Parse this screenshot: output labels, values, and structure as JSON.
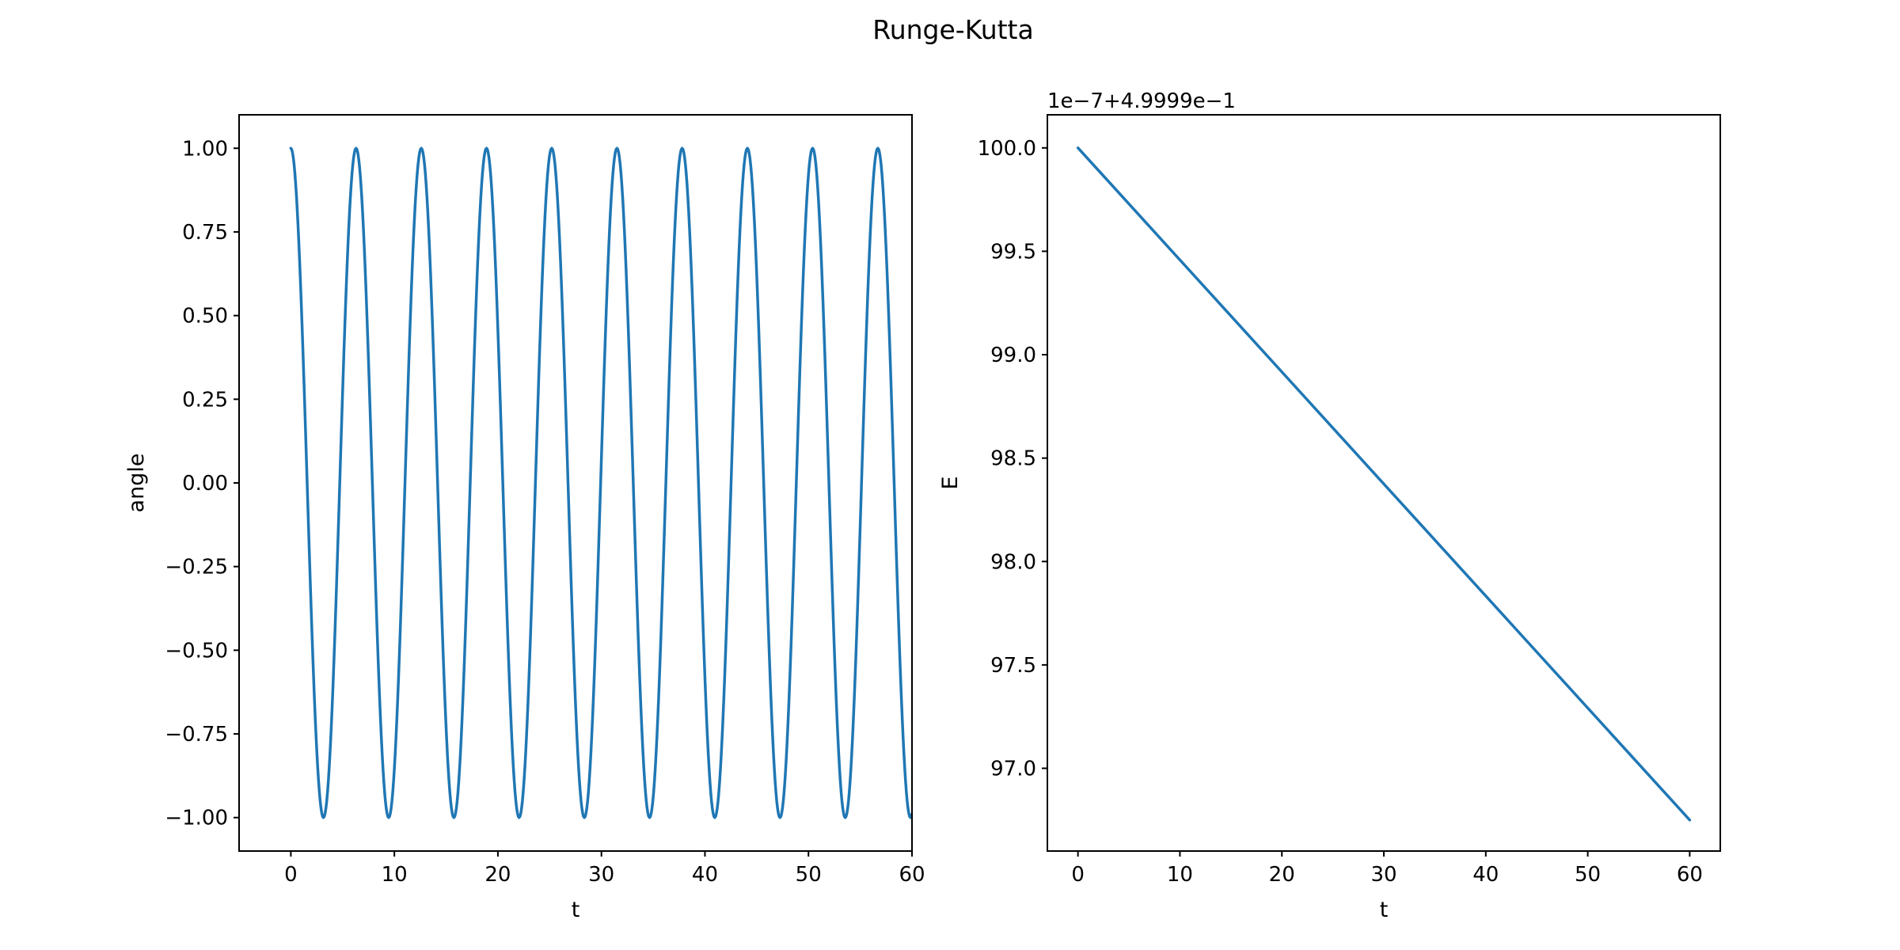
{
  "suptitle": "Runge-Kutta",
  "colors": {
    "series": "#1f77b4",
    "axes": "#000000",
    "background": "#ffffff"
  },
  "chart_data": [
    {
      "type": "line",
      "title": "",
      "xlabel": "t",
      "ylabel": "angle",
      "xlim": [
        -5,
        60
      ],
      "ylim": [
        -1.1,
        1.1
      ],
      "xticks": [
        0,
        10,
        20,
        30,
        40,
        50,
        60
      ],
      "xtick_labels": [
        "0",
        "10",
        "20",
        "30",
        "40",
        "50",
        "60"
      ],
      "yticks": [
        1.0,
        0.75,
        0.5,
        0.25,
        0.0,
        -0.25,
        -0.5,
        -0.75,
        -1.0
      ],
      "ytick_labels": [
        "1.00",
        "0.75",
        "0.50",
        "0.25",
        "0.00",
        "−0.25",
        "−0.50",
        "−0.75",
        "−1.00"
      ],
      "grid": false,
      "series": [
        {
          "x": [
            0,
            3.15,
            6.3,
            9.45,
            12.6,
            15.75,
            18.9,
            22.05,
            25.2,
            28.35,
            31.5,
            34.65,
            37.8,
            40.95,
            44.1,
            47.25,
            50.4,
            53.55,
            56.7,
            59.85,
            60
          ],
          "y": [
            1.0,
            -1.0,
            1.0,
            -1.0,
            1.0,
            -1.0,
            1.0,
            -1.0,
            1.0,
            -1.0,
            1.0,
            -1.0,
            1.0,
            -1.0,
            1.0,
            -1.0,
            1.0,
            -1.0,
            1.0,
            -1.0,
            -0.95
          ]
        }
      ]
    },
    {
      "type": "line",
      "title": "",
      "xlabel": "t",
      "ylabel": "E",
      "offset_text": "1e−7+4.9999e−1",
      "xlim": [
        -3,
        63
      ],
      "ylim": [
        96.6,
        100.16
      ],
      "xticks": [
        0,
        10,
        20,
        30,
        40,
        50,
        60
      ],
      "xtick_labels": [
        "0",
        "10",
        "20",
        "30",
        "40",
        "50",
        "60"
      ],
      "yticks": [
        100.0,
        99.5,
        99.0,
        98.5,
        98.0,
        97.5,
        97.0
      ],
      "ytick_labels": [
        "100.0",
        "99.5",
        "99.0",
        "98.5",
        "98.0",
        "97.5",
        "97.0"
      ],
      "grid": false,
      "series": [
        {
          "x": [
            0,
            60
          ],
          "y": [
            100.0,
            96.75
          ]
        }
      ]
    }
  ]
}
